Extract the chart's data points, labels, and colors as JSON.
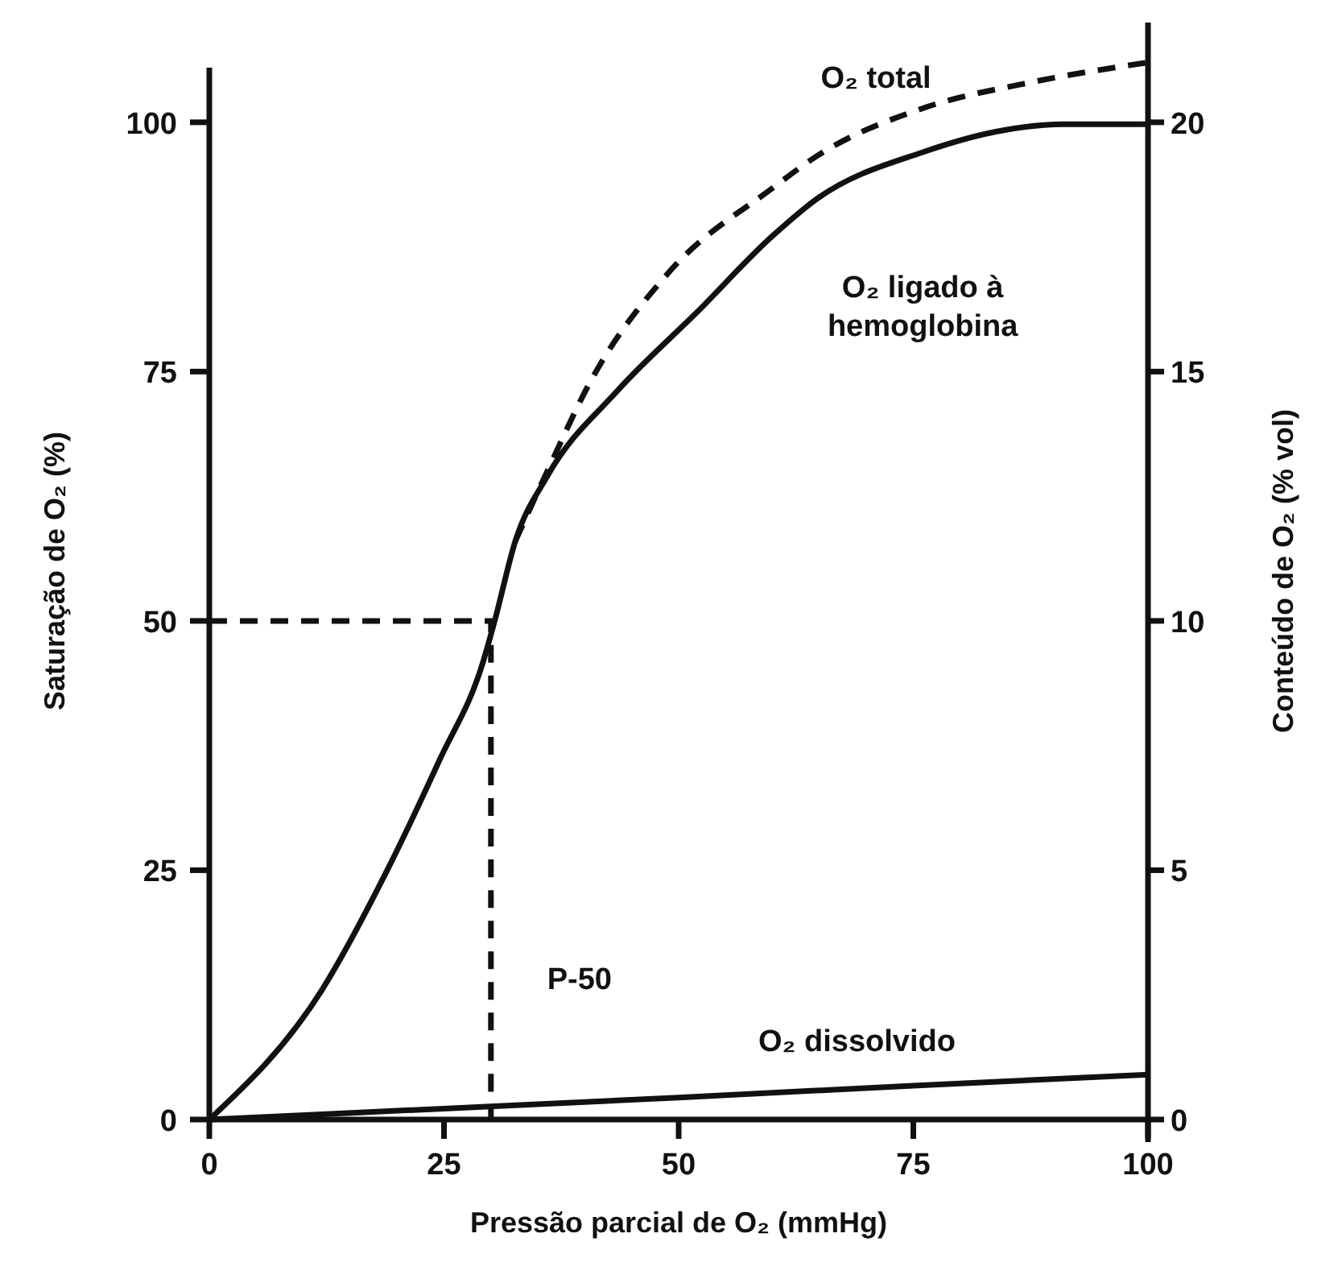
{
  "chart_data": {
    "type": "line",
    "xlabel": "Pressão parcial de O₂ (mmHg)",
    "ylabel": "Saturação de O₂ (%)",
    "y2label": "Conteúdo de O₂ (% vol)",
    "xlim": [
      0,
      100
    ],
    "xticks": [
      0,
      25,
      50,
      75,
      100
    ],
    "ylim": [
      0,
      110
    ],
    "yticks": [
      0,
      25,
      50,
      75,
      100
    ],
    "y2lim": [
      0,
      22
    ],
    "y2ticks": [
      0,
      5,
      10,
      15,
      20
    ],
    "grid": false,
    "marker": "none",
    "series": [
      {
        "name": "O₂ ligado à\nhemoglobina",
        "color": "#111111",
        "line_style": "solid",
        "x": [
          0,
          12,
          18.9,
          24.5,
          29.2,
          30.4,
          32.6,
          36,
          43.4,
          52,
          60,
          64.7,
          76,
          84.6,
          91,
          100
        ],
        "values": [
          0,
          13,
          24.9,
          36,
          46,
          50,
          58,
          64.5,
          73,
          81,
          88.6,
          92.3,
          97,
          99.2,
          99.8,
          99.8
        ]
      },
      {
        "name": "O₂ total",
        "color": "#111111",
        "line_style": "dashed",
        "x": [
          32.6,
          36,
          40.6,
          49,
          60,
          64.7,
          76,
          87.5,
          100
        ],
        "values": [
          58,
          65,
          74,
          85,
          93.4,
          96.6,
          101.4,
          104,
          106
        ]
      },
      {
        "name": "O₂ dissolvido",
        "color": "#111111",
        "line_style": "solid",
        "x": [
          0,
          25,
          50,
          75,
          100
        ],
        "values": [
          0,
          1.1,
          2.2,
          3.4,
          4.5
        ]
      },
      {
        "color": "#111111",
        "line_style": "dashed",
        "x": [
          0,
          30,
          30
        ],
        "values": [
          50,
          50,
          0
        ]
      }
    ],
    "annotations": [
      "P-50"
    ]
  }
}
